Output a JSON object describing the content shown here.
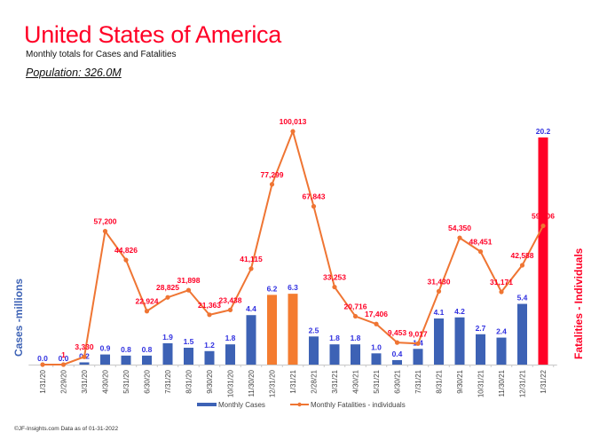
{
  "header": {
    "title": "United States of America",
    "subtitle": "Monthly totals for Cases and Fatalities",
    "population": "Population: 326.0M"
  },
  "footer": "©JF-Insights.com  Data as of 01-31-2022",
  "colors": {
    "title": "#ff0026",
    "cases_bar": "#3d62b5",
    "highlight_bar": "#f47c30",
    "latest_bar": "#ff0026",
    "fatality_line": "#ef7533",
    "case_label": "#3030e0",
    "fatality_label": "#ff0026"
  },
  "chart_data": {
    "type": "bar",
    "title": "United States of America",
    "subtitle": "Monthly totals for Cases and Fatalities",
    "categories": [
      "1/31/20",
      "2/29/20",
      "3/31/20",
      "4/30/20",
      "5/31/20",
      "6/30/20",
      "7/31/20",
      "8/31/20",
      "9/30/20",
      "10/31/20",
      "11/30/20",
      "12/31/20",
      "1/31/21",
      "2/28/21",
      "3/31/21",
      "4/30/21",
      "5/31/21",
      "6/30/21",
      "7/31/21",
      "8/31/21",
      "9/30/21",
      "10/31/21",
      "11/30/21",
      "12/31/21",
      "1/31/22"
    ],
    "series": [
      {
        "name": "Monthly Cases",
        "type": "bar",
        "axis": "left",
        "unit": "millions",
        "values": [
          0.0,
          0.0,
          0.2,
          0.9,
          0.8,
          0.8,
          1.9,
          1.5,
          1.2,
          1.8,
          4.4,
          6.2,
          6.3,
          2.5,
          1.8,
          1.8,
          1.0,
          0.4,
          1.4,
          4.1,
          4.2,
          2.7,
          2.4,
          5.4,
          20.2
        ],
        "labels": [
          "0.0",
          "0.0",
          "0.2",
          "0.9",
          "0.8",
          "0.8",
          "1.9",
          "1.5",
          "1.2",
          "1.8",
          "4.4",
          "6.2",
          "6.3",
          "2.5",
          "1.8",
          "1.8",
          "1.0",
          "0.4",
          "1.4",
          "4.1",
          "4.2",
          "2.7",
          "2.4",
          "5.4",
          "20.2"
        ],
        "bar_color_keys": [
          "cases_bar",
          "cases_bar",
          "cases_bar",
          "cases_bar",
          "cases_bar",
          "cases_bar",
          "cases_bar",
          "cases_bar",
          "cases_bar",
          "cases_bar",
          "cases_bar",
          "highlight_bar",
          "highlight_bar",
          "cases_bar",
          "cases_bar",
          "cases_bar",
          "cases_bar",
          "cases_bar",
          "cases_bar",
          "cases_bar",
          "cases_bar",
          "cases_bar",
          "cases_bar",
          "cases_bar",
          "latest_bar"
        ]
      },
      {
        "name": "Monthly Fatalities - individuals",
        "type": "line",
        "axis": "right",
        "unit": "individuals",
        "values": [
          0,
          1,
          3330,
          57200,
          44826,
          22924,
          28825,
          31898,
          21363,
          23438,
          41115,
          77299,
          100013,
          67843,
          33253,
          20716,
          17406,
          9453,
          9017,
          31430,
          54350,
          48451,
          31171,
          42588,
          59506
        ],
        "labels": [
          "",
          "1",
          "3,330",
          "57,200",
          "44,826",
          "22,924",
          "28,825",
          "31,898",
          "21,363",
          "23,438",
          "41,115",
          "77,299",
          "100,013",
          "67,843",
          "33,253",
          "20,716",
          "17,406",
          "9,453",
          "9,017",
          "31,430",
          "54,350",
          "48,451",
          "31,171",
          "42,588",
          "59,506"
        ]
      }
    ],
    "ylabel_left": "Cases -millions",
    "ylabel_right": "Fatalities - Individuals",
    "ylim_left": [
      0,
      21.3
    ],
    "ylim_right": [
      0,
      102700
    ],
    "grid": false,
    "legend": {
      "position": "bottom",
      "entries": [
        "Monthly Cases",
        "Monthly Fatalities - individuals"
      ]
    }
  }
}
